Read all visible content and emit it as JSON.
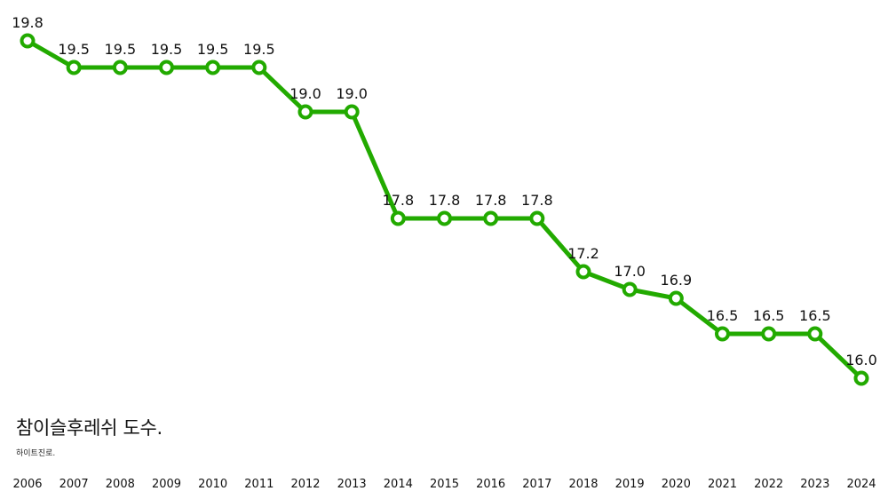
{
  "chart_data": {
    "type": "line",
    "title": "참이슬후레쉬 도수.",
    "subtitle": "하이트진로.",
    "categories": [
      "2006",
      "2007",
      "2008",
      "2009",
      "2010",
      "2011",
      "2012",
      "2013",
      "2014",
      "2015",
      "2016",
      "2017",
      "2018",
      "2019",
      "2020",
      "2021",
      "2022",
      "2023",
      "2024"
    ],
    "series": [
      {
        "values": [
          19.8,
          19.5,
          19.5,
          19.5,
          19.5,
          19.5,
          19.0,
          19.0,
          17.8,
          17.8,
          17.8,
          17.8,
          17.2,
          17.0,
          16.9,
          16.5,
          16.5,
          16.5,
          16.0
        ],
        "labels": [
          "19.8",
          "19.5",
          "19.5",
          "19.5",
          "19.5",
          "19.5",
          "19.0",
          "19.0",
          "17.8",
          "17.8",
          "17.8",
          "17.8",
          "17.2",
          "17.0",
          "16.9",
          "16.5",
          "16.5",
          "16.5",
          "16.0"
        ]
      }
    ],
    "ylim": [
      16.0,
      19.8
    ],
    "grid": false,
    "line_color": "#22aa00",
    "marker_fill": "#ffffff"
  }
}
